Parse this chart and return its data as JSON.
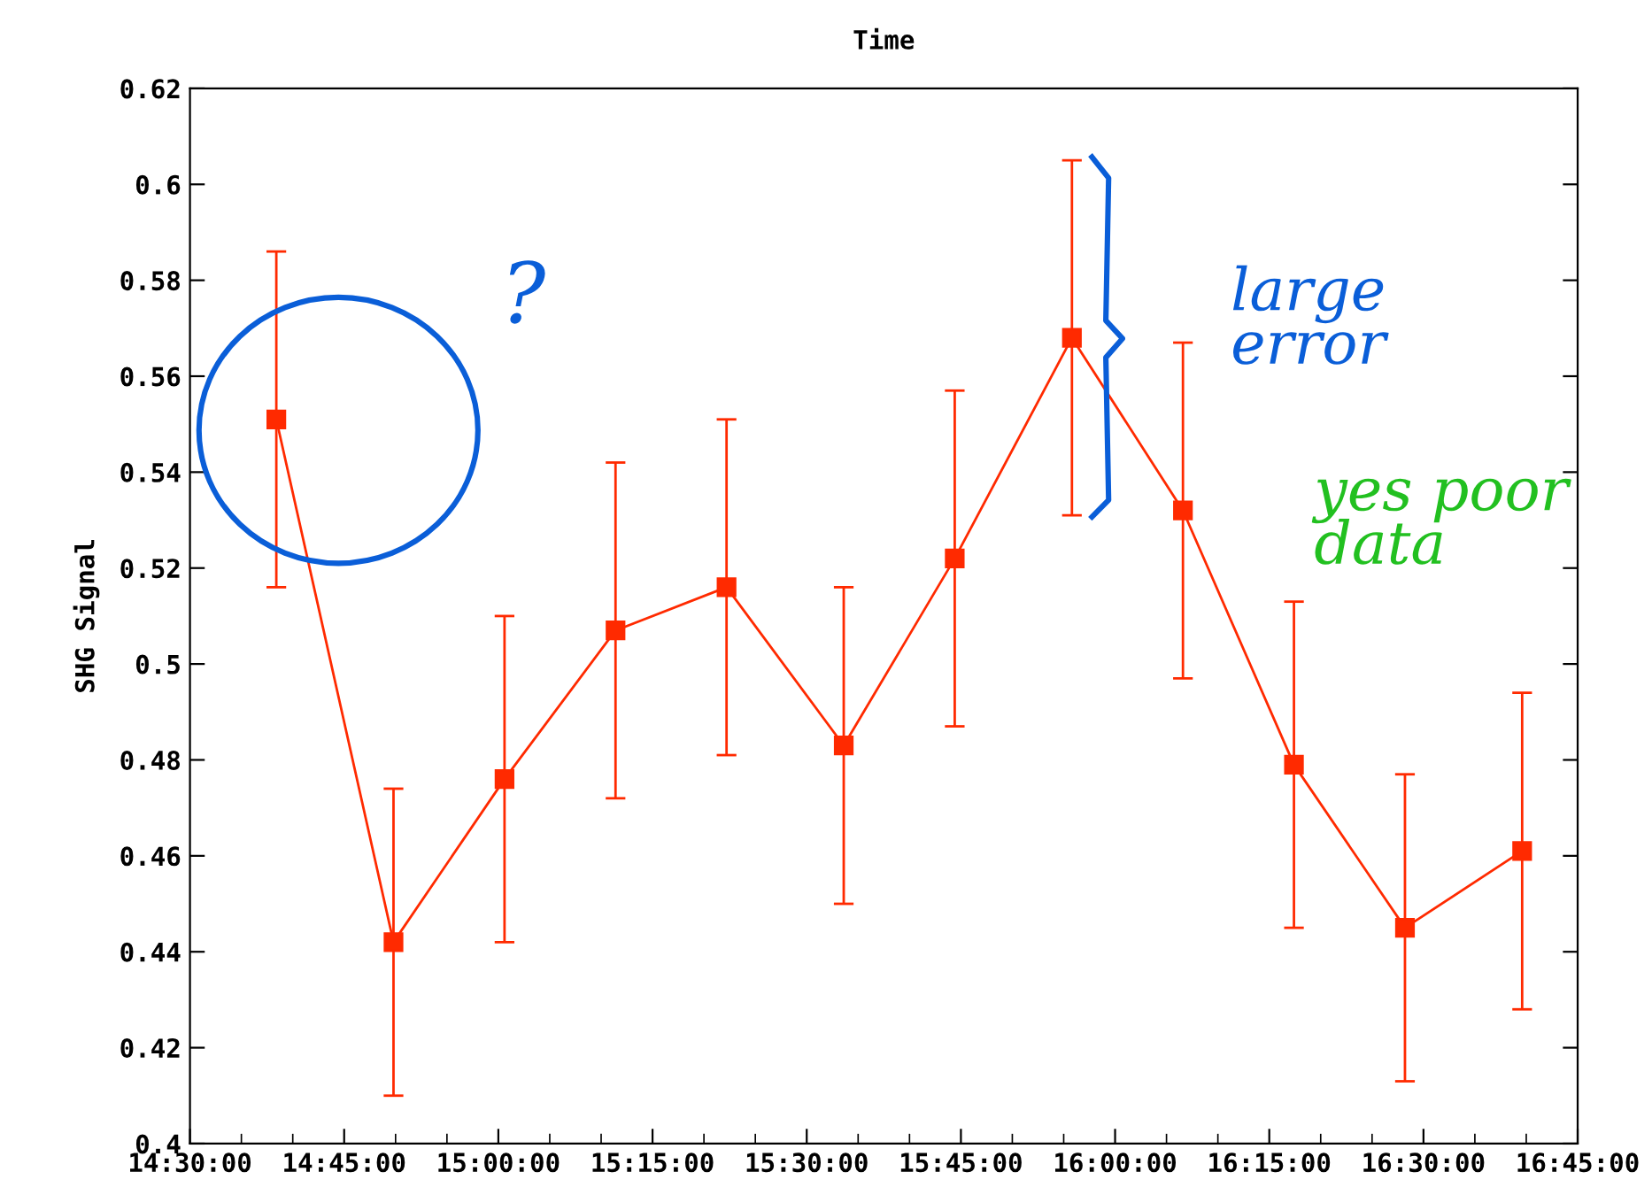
{
  "chart_data": {
    "type": "line",
    "title": "Time",
    "ylabel": "SHG Signal",
    "x": [
      14.64,
      14.83,
      15.01,
      15.19,
      15.37,
      15.56,
      15.74,
      15.93,
      16.11,
      16.29,
      16.47,
      16.66
    ],
    "series": [
      {
        "color": "#ff2a00",
        "values": [
          0.551,
          0.442,
          0.476,
          0.507,
          0.516,
          0.483,
          0.522,
          0.568,
          0.532,
          0.479,
          0.445,
          0.461
        ],
        "errors": [
          0.035,
          0.032,
          0.034,
          0.035,
          0.035,
          0.033,
          0.035,
          0.037,
          0.035,
          0.034,
          0.032,
          0.033
        ]
      }
    ],
    "xlim": [
      14.5,
      16.75
    ],
    "xticks": [
      {
        "value": 14.5,
        "label": "14:30:00"
      },
      {
        "value": 14.75,
        "label": "14:45:00"
      },
      {
        "value": 15.0,
        "label": "15:00:00"
      },
      {
        "value": 15.25,
        "label": "15:15:00"
      },
      {
        "value": 15.5,
        "label": "15:30:00"
      },
      {
        "value": 15.75,
        "label": "15:45:00"
      },
      {
        "value": 16.0,
        "label": "16:00:00"
      },
      {
        "value": 16.25,
        "label": "16:15:00"
      },
      {
        "value": 16.5,
        "label": "16:30:00"
      },
      {
        "value": 16.75,
        "label": "16:45:00"
      }
    ],
    "ylim": [
      0.4,
      0.62
    ],
    "yticks": [
      0.4,
      0.42,
      0.44,
      0.46,
      0.48,
      0.5,
      0.52,
      0.54,
      0.56,
      0.58,
      0.6,
      0.62
    ],
    "annotations": [
      "?",
      "large\nerror",
      "yes poor\ndata"
    ],
    "marker": "square",
    "line_style": "solid",
    "grid": false
  }
}
